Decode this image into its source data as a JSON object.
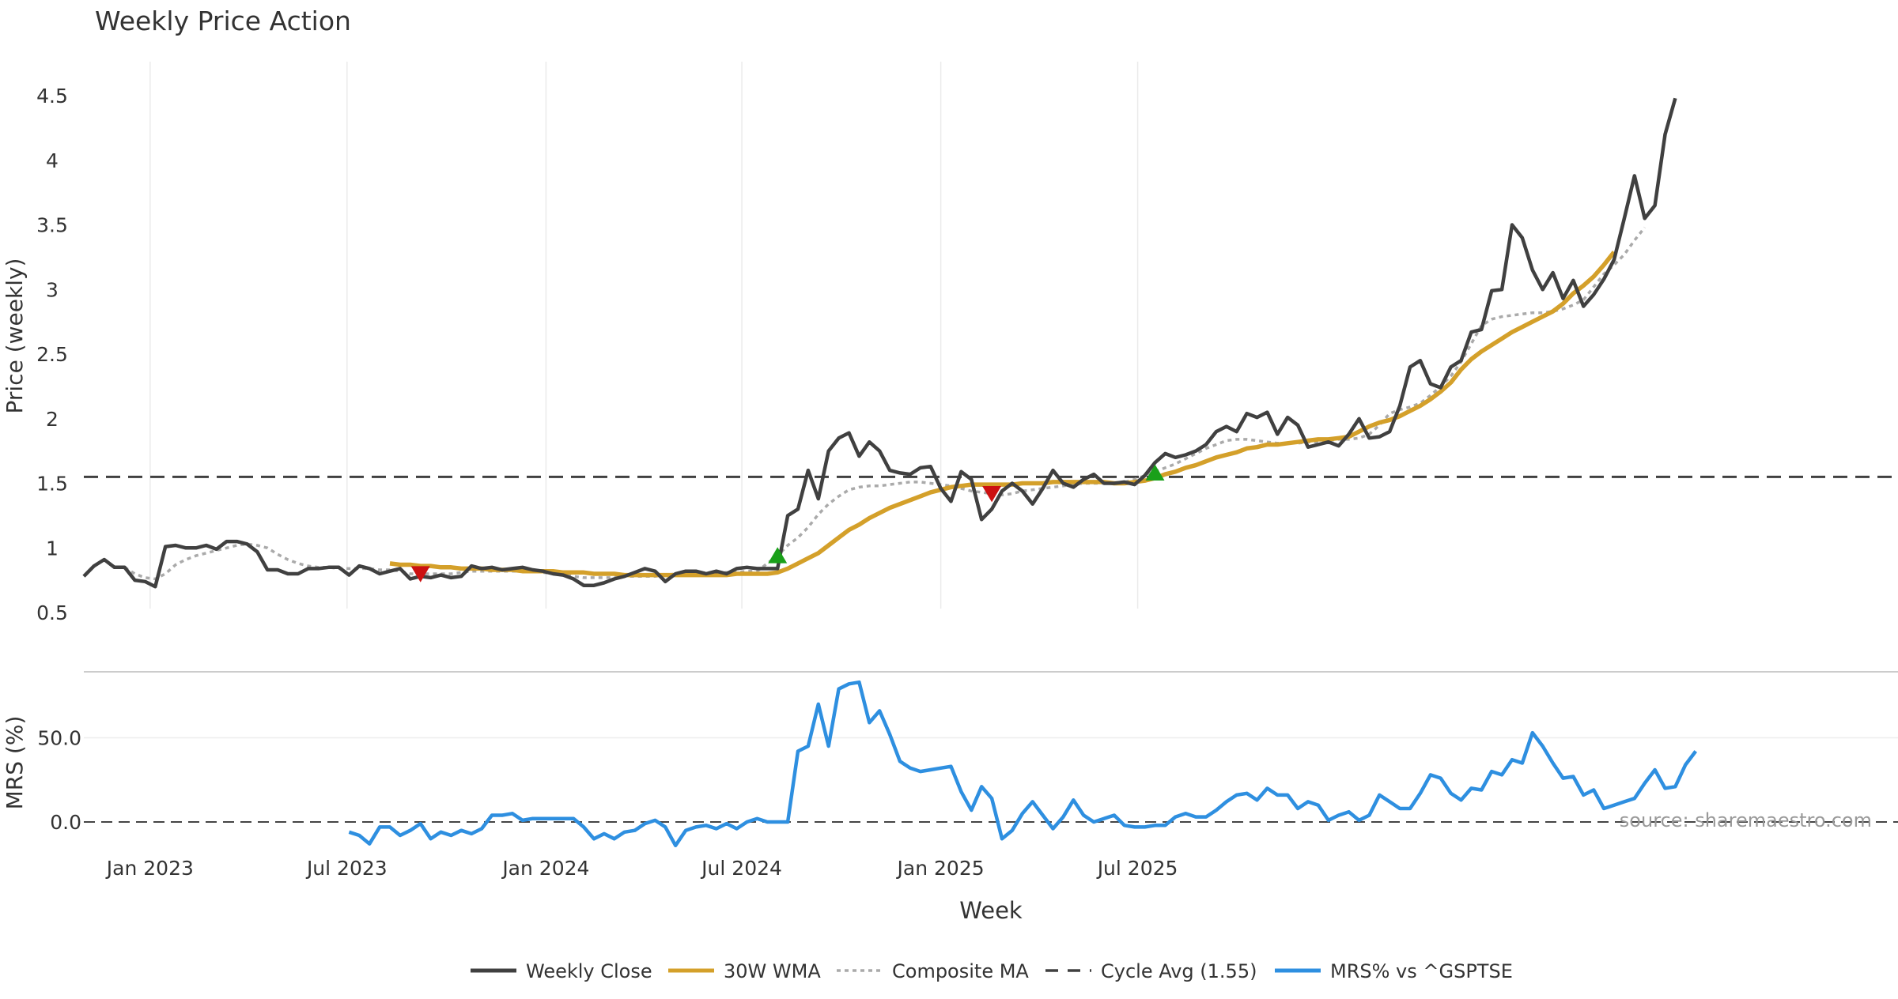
{
  "chart_data": {
    "type": "line",
    "title": "Weekly Price Action",
    "xlabel": "Week",
    "x_ticks": [
      "Jan 2023",
      "Jul 2023",
      "Jan 2024",
      "Jul 2024",
      "Jan 2025",
      "Jul 2025"
    ],
    "source_note": "source: sharemaestro.com",
    "price_panel": {
      "ylabel": "Price (weekly)",
      "ylim": [
        0.5,
        4.6
      ],
      "y_ticks": [
        0.5,
        1,
        1.5,
        2,
        2.5,
        3,
        3.5,
        4,
        4.5
      ],
      "y_tick_labels": [
        "0.5",
        "1",
        "1.5",
        "2",
        "2.5",
        "3",
        "3.5",
        "4",
        "4.5"
      ],
      "grid": "vertical",
      "start_week": 0,
      "series": [
        {
          "name": "Weekly Close",
          "color": "#404040",
          "values": [
            0.78,
            0.86,
            0.91,
            0.85,
            0.85,
            0.75,
            0.74,
            0.7,
            1.01,
            1.02,
            1.0,
            1.0,
            1.02,
            0.99,
            1.05,
            1.05,
            1.03,
            0.97,
            0.83,
            0.83,
            0.8,
            0.8,
            0.84,
            0.84,
            0.85,
            0.85,
            0.79,
            0.86,
            0.84,
            0.8,
            0.82,
            0.84,
            0.76,
            0.78,
            0.77,
            0.79,
            0.77,
            0.78,
            0.86,
            0.84,
            0.85,
            0.83,
            0.84,
            0.85,
            0.83,
            0.82,
            0.8,
            0.79,
            0.76,
            0.71,
            0.71,
            0.73,
            0.76,
            0.78,
            0.81,
            0.84,
            0.82,
            0.74,
            0.8,
            0.82,
            0.82,
            0.8,
            0.82,
            0.8,
            0.84,
            0.85,
            0.84,
            0.84,
            0.84,
            1.25,
            1.3,
            1.6,
            1.38,
            1.75,
            1.85,
            1.89,
            1.71,
            1.82,
            1.75,
            1.6,
            1.58,
            1.57,
            1.62,
            1.63,
            1.46,
            1.36,
            1.59,
            1.53,
            1.22,
            1.3,
            1.44,
            1.5,
            1.44,
            1.34,
            1.46,
            1.6,
            1.5,
            1.47,
            1.53,
            1.57,
            1.5,
            1.5,
            1.51,
            1.49,
            1.56,
            1.66,
            1.73,
            1.7,
            1.72,
            1.75,
            1.8,
            1.9,
            1.94,
            1.9,
            2.04,
            2.01,
            2.05,
            1.88,
            2.01,
            1.95,
            1.78,
            1.8,
            1.82,
            1.79,
            1.88,
            2.0,
            1.85,
            1.86,
            1.9,
            2.1,
            2.4,
            2.45,
            2.27,
            2.24,
            2.4,
            2.45,
            2.67,
            2.69,
            2.99,
            3.0,
            3.5,
            3.4,
            3.15,
            3.0,
            3.13,
            2.93,
            3.07,
            2.87,
            2.96,
            3.08,
            3.23,
            3.55,
            3.88,
            3.55,
            3.65,
            4.2,
            4.48
          ]
        },
        {
          "name": "30W WMA",
          "color": "#D4A02A",
          "start_week": 30,
          "values": [
            0.88,
            0.87,
            0.87,
            0.86,
            0.86,
            0.85,
            0.85,
            0.84,
            0.84,
            0.84,
            0.83,
            0.83,
            0.83,
            0.82,
            0.82,
            0.82,
            0.82,
            0.81,
            0.81,
            0.81,
            0.8,
            0.8,
            0.8,
            0.79,
            0.79,
            0.79,
            0.79,
            0.79,
            0.79,
            0.79,
            0.79,
            0.79,
            0.79,
            0.79,
            0.8,
            0.8,
            0.8,
            0.8,
            0.81,
            0.84,
            0.88,
            0.92,
            0.96,
            1.02,
            1.08,
            1.14,
            1.18,
            1.23,
            1.27,
            1.31,
            1.34,
            1.37,
            1.4,
            1.43,
            1.45,
            1.47,
            1.48,
            1.49,
            1.49,
            1.49,
            1.49,
            1.49,
            1.5,
            1.5,
            1.5,
            1.51,
            1.51,
            1.51,
            1.51,
            1.51,
            1.51,
            1.5,
            1.5,
            1.51,
            1.52,
            1.54,
            1.57,
            1.59,
            1.62,
            1.64,
            1.67,
            1.7,
            1.72,
            1.74,
            1.77,
            1.78,
            1.8,
            1.8,
            1.81,
            1.82,
            1.83,
            1.84,
            1.84,
            1.85,
            1.86,
            1.9,
            1.94,
            1.97,
            1.99,
            2.02,
            2.06,
            2.1,
            2.15,
            2.21,
            2.28,
            2.38,
            2.46,
            2.52,
            2.57,
            2.62,
            2.67,
            2.71,
            2.75,
            2.79,
            2.83,
            2.89,
            2.97,
            3.03,
            3.1,
            3.19,
            3.29
          ]
        },
        {
          "name": "Composite MA",
          "color": "#AAAAAA",
          "start_week": 4,
          "values": [
            0.85,
            0.8,
            0.77,
            0.76,
            0.8,
            0.87,
            0.91,
            0.94,
            0.96,
            0.98,
            1.0,
            1.02,
            1.03,
            1.02,
            1.0,
            0.95,
            0.91,
            0.88,
            0.86,
            0.85,
            0.85,
            0.84,
            0.84,
            0.84,
            0.84,
            0.83,
            0.83,
            0.82,
            0.8,
            0.8,
            0.8,
            0.8,
            0.8,
            0.81,
            0.82,
            0.82,
            0.82,
            0.82,
            0.82,
            0.82,
            0.82,
            0.81,
            0.8,
            0.79,
            0.78,
            0.77,
            0.77,
            0.77,
            0.77,
            0.78,
            0.78,
            0.78,
            0.78,
            0.79,
            0.8,
            0.8,
            0.8,
            0.81,
            0.81,
            0.81,
            0.81,
            0.82,
            0.82,
            0.88,
            0.94,
            1.02,
            1.08,
            1.16,
            1.26,
            1.34,
            1.4,
            1.45,
            1.47,
            1.48,
            1.48,
            1.49,
            1.5,
            1.51,
            1.51,
            1.5,
            1.49,
            1.48,
            1.46,
            1.44,
            1.43,
            1.42,
            1.41,
            1.42,
            1.44,
            1.45,
            1.46,
            1.47,
            1.48,
            1.49,
            1.5,
            1.5,
            1.5,
            1.5,
            1.51,
            1.53,
            1.56,
            1.59,
            1.62,
            1.65,
            1.69,
            1.73,
            1.77,
            1.8,
            1.83,
            1.84,
            1.84,
            1.83,
            1.82,
            1.81,
            1.81,
            1.81,
            1.82,
            1.82,
            1.83,
            1.84,
            1.84,
            1.85,
            1.88,
            1.95,
            2.04,
            2.07,
            2.09,
            2.12,
            2.18,
            2.25,
            2.33,
            2.44,
            2.58,
            2.72,
            2.77,
            2.79,
            2.8,
            2.81,
            2.82,
            2.82,
            2.83,
            2.85,
            2.88,
            2.92,
            3.02,
            3.12,
            3.19,
            3.27,
            3.38,
            3.48
          ]
        },
        {
          "name": "Cycle Avg (1.55)",
          "color": "#404040",
          "value": 1.55
        }
      ],
      "signals": [
        {
          "type": "sell",
          "week": 33,
          "value": 0.8,
          "color": "#CC1111"
        },
        {
          "type": "buy",
          "week": 68,
          "value": 0.94,
          "color": "#1AA01A"
        },
        {
          "type": "sell",
          "week": 89,
          "value": 1.42,
          "color": "#CC1111"
        },
        {
          "type": "buy",
          "week": 105,
          "value": 1.58,
          "color": "#1AA01A"
        }
      ]
    },
    "mrs_panel": {
      "ylabel": "MRS (%)",
      "ylim": [
        -12,
        85
      ],
      "y_ticks": [
        0,
        50
      ],
      "y_tick_labels": [
        "0.0",
        "50.0"
      ],
      "series": [
        {
          "name": "MRS% vs ^GSPTSE",
          "color": "#2E8FE0",
          "start_week": 26,
          "values": [
            -6,
            -8,
            -13,
            -3,
            -3,
            -8,
            -5,
            -1,
            -10,
            -6,
            -8,
            -5,
            -7,
            -4,
            4,
            4,
            5,
            1,
            2,
            2,
            2,
            2,
            2,
            -3,
            -10,
            -7,
            -10,
            -6,
            -5,
            -1,
            1,
            -3,
            -14,
            -5,
            -3,
            -2,
            -4,
            -1,
            -4,
            0,
            2,
            0,
            0,
            0,
            42,
            45,
            70,
            45,
            79,
            82,
            83,
            59,
            66,
            52,
            36,
            32,
            30,
            31,
            32,
            33,
            18,
            7,
            21,
            14,
            -10,
            -5,
            5,
            12,
            4,
            -4,
            3,
            13,
            4,
            0,
            2,
            4,
            -2,
            -3,
            -3,
            -2,
            -2,
            3,
            5,
            3,
            3,
            7,
            12,
            16,
            17,
            13,
            20,
            16,
            16,
            8,
            12,
            10,
            1,
            4,
            6,
            1,
            4,
            16,
            12,
            8,
            8,
            17,
            28,
            26,
            17,
            13,
            20,
            19,
            30,
            28,
            37,
            35,
            53,
            45,
            35,
            26,
            27,
            16,
            19,
            8,
            10,
            12,
            14,
            23,
            31,
            20,
            21,
            34,
            42
          ]
        }
      ],
      "zero_line": 0
    },
    "legend": {
      "placement": "bottom-center",
      "entries": [
        {
          "label": "Weekly Close",
          "color": "#404040",
          "style": "solid"
        },
        {
          "label": "30W WMA",
          "color": "#D4A02A",
          "style": "solid"
        },
        {
          "label": "Composite MA",
          "color": "#AAAAAA",
          "style": "dotted"
        },
        {
          "label": "Cycle Avg (1.55)",
          "color": "#404040",
          "style": "dashed"
        },
        {
          "label": "MRS% vs ^GSPTSE",
          "color": "#2E8FE0",
          "style": "solid"
        }
      ]
    }
  }
}
